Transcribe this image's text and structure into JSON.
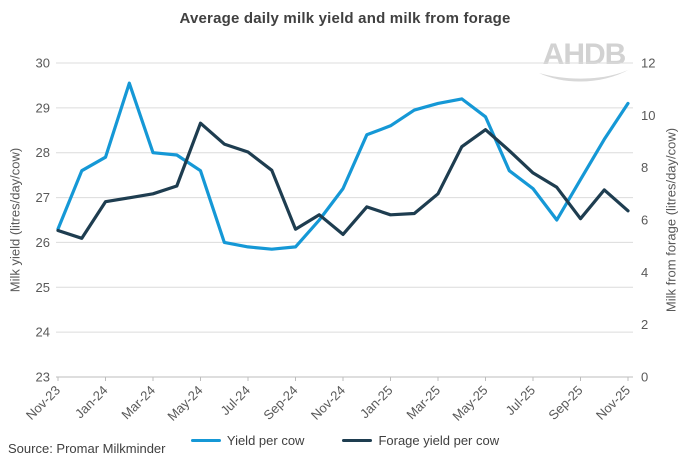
{
  "title": "Average daily milk yield and milk from forage",
  "watermark": "AHDB",
  "source": "Source: Promar Milkminder",
  "chart_data": {
    "type": "line",
    "categories": [
      "Nov-23",
      "Dec-23",
      "Jan-24",
      "Feb-24",
      "Mar-24",
      "Apr-24",
      "May-24",
      "Jun-24",
      "Jul-24",
      "Aug-24",
      "Sep-24",
      "Oct-24",
      "Nov-24",
      "Dec-24",
      "Jan-25",
      "Feb-25",
      "Mar-25",
      "Apr-25",
      "May-25",
      "Jun-25",
      "Jul-25",
      "Aug-25",
      "Sep-25",
      "Oct-25",
      "Nov-25"
    ],
    "x_tick_labels": [
      "Nov-23",
      "Jan-24",
      "Mar-24",
      "May-24",
      "Jul-24",
      "Sep-24",
      "Nov-24",
      "Jan-25",
      "Mar-25",
      "May-25",
      "Jul-25",
      "Sep-25",
      "Nov-25"
    ],
    "series": [
      {
        "name": "Yield per cow",
        "axis": "left",
        "color": "#1598d6",
        "values": [
          26.3,
          27.6,
          27.9,
          29.55,
          28.0,
          27.95,
          27.6,
          26.0,
          25.9,
          25.85,
          25.9,
          26.5,
          27.2,
          28.4,
          28.6,
          28.95,
          29.1,
          29.2,
          28.8,
          27.6,
          27.2,
          26.5,
          27.4,
          28.3,
          29.1
        ]
      },
      {
        "name": "Forage yield per cow",
        "axis": "right",
        "color": "#1e3d50",
        "values": [
          5.6,
          5.3,
          6.7,
          6.85,
          7.0,
          7.3,
          9.7,
          8.9,
          8.6,
          7.9,
          5.65,
          6.2,
          5.45,
          6.5,
          6.2,
          6.25,
          7.0,
          8.8,
          9.45,
          8.65,
          7.8,
          7.25,
          6.05,
          7.15,
          6.35
        ]
      }
    ],
    "left_axis": {
      "label": "Milk yield (litres/day/cow)",
      "min": 23,
      "max": 30,
      "tick_step": 1,
      "ticks": [
        23,
        24,
        25,
        26,
        27,
        28,
        29,
        30
      ]
    },
    "right_axis": {
      "label": "Milk from forage (litres/day/cow)",
      "min": 0,
      "max": 12,
      "tick_step": 2,
      "ticks": [
        0,
        2,
        4,
        6,
        8,
        10,
        12
      ]
    },
    "grid": "horizontal",
    "legend_position": "bottom",
    "colors": {
      "grid": "#dcdcdc",
      "axis_line": "#bdbdbd",
      "tick_text": "#595959",
      "title_text": "#404040",
      "watermark": "#d2d2d2"
    }
  }
}
